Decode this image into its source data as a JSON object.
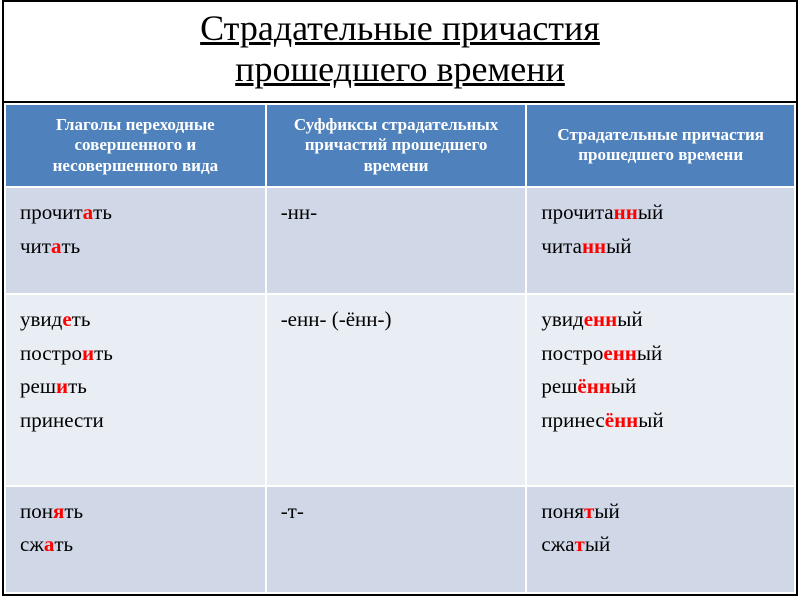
{
  "title_line1": "Страдательные причастия",
  "title_line2": "прошедшего времени",
  "headers": {
    "col1": "Глаголы переходные совершенного и несовершенного вида",
    "col2": "Суффиксы страдательных причастий прошедшего времени",
    "col3": "Страдательные причастия прошедшего времени"
  },
  "rows": [
    {
      "verbs": [
        {
          "stem": "прочит",
          "mid": "а",
          "end": "ть"
        },
        {
          "stem": "чит",
          "mid": "а",
          "end": "ть"
        }
      ],
      "suffix": "-нн-",
      "participles": [
        {
          "pre": "прочита",
          "hl": "нн",
          "post": "ый"
        },
        {
          "pre": "чита",
          "hl": "нн",
          "post": "ый"
        }
      ]
    },
    {
      "verbs": [
        {
          "stem": "увид",
          "mid": "е",
          "end": "ть"
        },
        {
          "stem": "постро",
          "mid": "и",
          "end": "ть"
        },
        {
          "stem": "реш",
          "mid": "и",
          "end": "ть"
        },
        {
          "stem": "принес",
          "mid": "",
          "end": "ти"
        }
      ],
      "suffix": "-енн- (-ённ-)",
      "participles": [
        {
          "pre": "увид",
          "hl": "енн",
          "post": "ый"
        },
        {
          "pre": "постро",
          "hl": "енн",
          "post": "ый"
        },
        {
          "pre": "реш",
          "hl": "ённ",
          "post": "ый"
        },
        {
          "pre": "принес",
          "hl": "ённ",
          "post": "ый"
        }
      ]
    },
    {
      "verbs": [
        {
          "stem": "пон",
          "mid": "я",
          "end": "ть"
        },
        {
          "stem": "сж",
          "mid": "а",
          "end": "ть"
        }
      ],
      "suffix": "-т-",
      "participles": [
        {
          "pre": "поня",
          "hl": "т",
          "post": "ый"
        },
        {
          "pre": "сжа",
          "hl": "т",
          "post": "ый"
        }
      ]
    }
  ]
}
